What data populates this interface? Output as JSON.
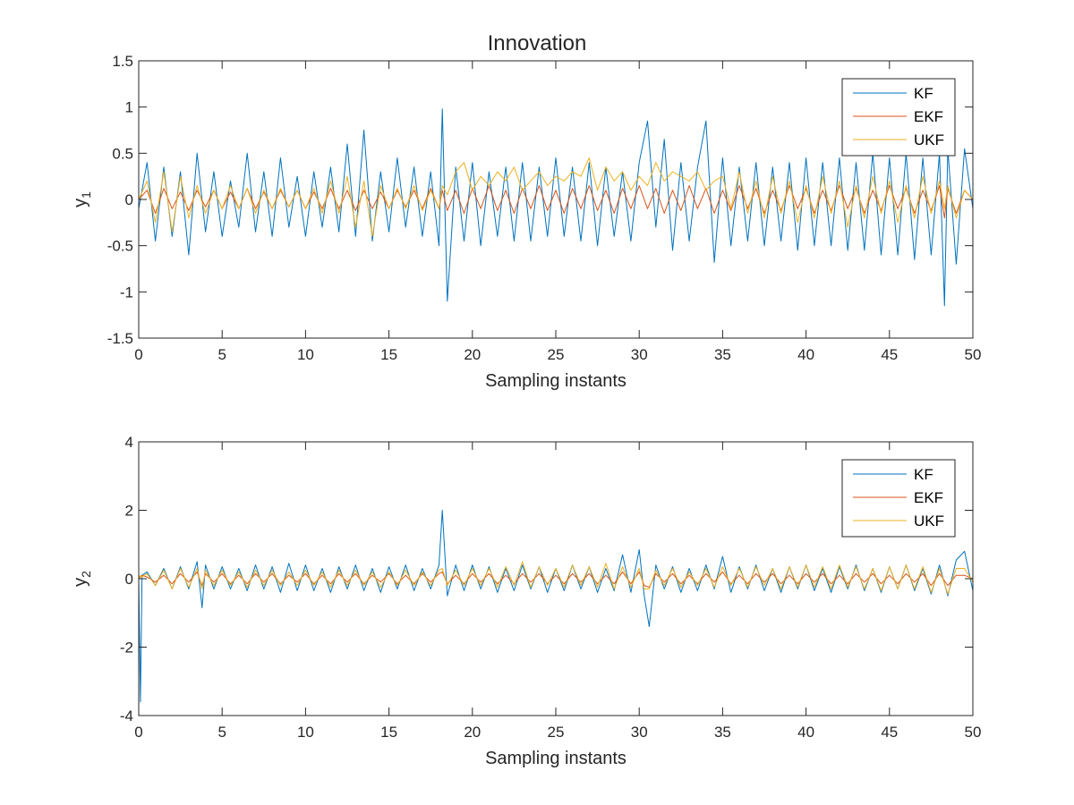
{
  "figure": {
    "title": "Innovation"
  },
  "chart_data": [
    {
      "type": "line",
      "title": "Innovation",
      "xlabel": "Sampling instants",
      "ylabel": "y",
      "ylabel_sub": "1",
      "xlim": [
        0,
        50
      ],
      "ylim": [
        -1.5,
        1.5
      ],
      "xticks": [
        "0",
        "5",
        "10",
        "15",
        "20",
        "25",
        "30",
        "35",
        "40",
        "45",
        "50"
      ],
      "yticks": [
        "-1.5",
        "-1",
        "-0.5",
        "0",
        "0.5",
        "1",
        "1.5"
      ],
      "grid": false,
      "legend_position": "top-right",
      "x": [
        0,
        0.5,
        1,
        1.5,
        2,
        2.5,
        3,
        3.5,
        4,
        4.5,
        5,
        5.5,
        6,
        6.5,
        7,
        7.5,
        8,
        8.5,
        9,
        9.5,
        10,
        10.5,
        11,
        11.5,
        12,
        12.5,
        13,
        13.5,
        14,
        14.5,
        15,
        15.5,
        16,
        16.5,
        17,
        17.5,
        18,
        18.2,
        18.5,
        19,
        19.5,
        20,
        20.5,
        21,
        21.5,
        22,
        22.5,
        23,
        23.5,
        24,
        24.5,
        25,
        25.5,
        26,
        26.5,
        27,
        27.5,
        28,
        28.5,
        29,
        29.5,
        30,
        30.5,
        31,
        31.5,
        32,
        32.5,
        33,
        33.5,
        34,
        34.5,
        35,
        35.5,
        36,
        36.5,
        37,
        37.5,
        38,
        38.5,
        39,
        39.5,
        40,
        40.5,
        41,
        41.5,
        42,
        42.5,
        43,
        43.5,
        44,
        44.5,
        45,
        45.5,
        46,
        46.5,
        47,
        47.5,
        48,
        48.3,
        48.5,
        49,
        49.5,
        50
      ],
      "series": [
        {
          "name": "KF",
          "color": "#0072BD",
          "values": [
            -0.1,
            0.4,
            -0.45,
            0.35,
            -0.4,
            0.3,
            -0.6,
            0.5,
            -0.35,
            0.3,
            -0.4,
            0.2,
            -0.3,
            0.5,
            -0.35,
            0.3,
            -0.4,
            0.45,
            -0.3,
            0.25,
            -0.4,
            0.3,
            -0.3,
            0.35,
            -0.35,
            0.6,
            -0.4,
            0.75,
            -0.45,
            0.3,
            -0.35,
            0.45,
            -0.3,
            0.35,
            -0.4,
            0.3,
            -0.5,
            0.98,
            -1.1,
            0.35,
            -0.45,
            0.4,
            -0.5,
            0.3,
            -0.4,
            0.35,
            -0.45,
            0.4,
            -0.45,
            0.35,
            -0.4,
            0.45,
            -0.4,
            0.35,
            -0.45,
            0.4,
            -0.5,
            0.35,
            -0.4,
            0.3,
            -0.45,
            0.4,
            0.85,
            -0.3,
            0.65,
            -0.55,
            0.4,
            -0.45,
            0.35,
            0.85,
            -0.68,
            0.45,
            -0.5,
            0.35,
            -0.45,
            0.4,
            -0.5,
            0.35,
            -0.45,
            0.4,
            -0.55,
            0.45,
            -0.5,
            0.4,
            -0.5,
            0.45,
            -0.55,
            0.4,
            -0.55,
            0.5,
            -0.6,
            0.45,
            -0.6,
            0.5,
            -0.65,
            0.45,
            -0.6,
            0.5,
            -1.15,
            0.55,
            -0.7,
            0.55,
            -0.1
          ]
        },
        {
          "name": "EKF",
          "color": "#D95319",
          "values": [
            0,
            0.1,
            -0.15,
            0.12,
            -0.1,
            0.08,
            -0.12,
            0.1,
            -0.08,
            0.1,
            -0.1,
            0.08,
            -0.1,
            0.12,
            -0.1,
            0.08,
            -0.1,
            0.1,
            -0.08,
            0.1,
            -0.1,
            0.08,
            -0.1,
            0.12,
            -0.1,
            0.1,
            -0.12,
            0.1,
            -0.1,
            0.08,
            -0.1,
            0.1,
            -0.08,
            0.1,
            -0.1,
            0.12,
            -0.1,
            0.1,
            -0.12,
            0.1,
            -0.15,
            0.12,
            -0.1,
            0.15,
            -0.12,
            0.1,
            -0.15,
            0.12,
            -0.1,
            0.15,
            -0.12,
            0.1,
            -0.15,
            0.12,
            -0.1,
            0.15,
            -0.12,
            0.1,
            -0.15,
            0.12,
            -0.1,
            0.15,
            -0.1,
            0.12,
            -0.15,
            0.1,
            -0.12,
            0.15,
            -0.1,
            0.12,
            -0.15,
            0.1,
            -0.12,
            0.15,
            -0.1,
            0.12,
            -0.15,
            0.1,
            -0.12,
            0.15,
            -0.1,
            0.12,
            -0.15,
            0.1,
            -0.12,
            0.15,
            -0.1,
            0.12,
            -0.15,
            0.1,
            -0.12,
            0.15,
            -0.1,
            0.12,
            -0.15,
            0.1,
            -0.12,
            0.15,
            -0.2,
            0.12,
            -0.15,
            0.1,
            0
          ]
        },
        {
          "name": "UKF",
          "color": "#EDB120",
          "values": [
            0,
            0.2,
            -0.25,
            0.3,
            -0.35,
            0.25,
            -0.2,
            0.15,
            -0.15,
            0.1,
            -0.1,
            0.15,
            -0.1,
            0.12,
            -0.15,
            0.1,
            -0.1,
            0.12,
            -0.08,
            0.1,
            -0.1,
            0.12,
            -0.15,
            0.2,
            -0.15,
            0.25,
            -0.3,
            0.2,
            -0.4,
            0.15,
            -0.1,
            0.12,
            -0.1,
            0.15,
            -0.12,
            0.1,
            -0.1,
            0.15,
            0.05,
            0.3,
            0.4,
            0.1,
            0.25,
            0.15,
            0.3,
            0.2,
            0.35,
            0.1,
            0.2,
            0.3,
            0.15,
            0.25,
            0.2,
            0.3,
            0.25,
            0.45,
            0.1,
            0.35,
            0.2,
            0.3,
            0.1,
            0.25,
            0.15,
            0.4,
            0.2,
            0.3,
            0.25,
            0.2,
            0.3,
            0.1,
            0.2,
            0.25,
            -0.1,
            0.3,
            -0.15,
            0.2,
            -0.2,
            0.25,
            -0.15,
            0.2,
            -0.25,
            0.15,
            -0.2,
            0.25,
            -0.15,
            0.2,
            -0.3,
            0.15,
            -0.2,
            0.25,
            -0.15,
            0.2,
            -0.25,
            0.15,
            -0.2,
            0.25,
            -0.15,
            0.2,
            -0.1,
            0.15,
            -0.2,
            0.1,
            0
          ]
        }
      ]
    },
    {
      "type": "line",
      "title": "",
      "xlabel": "Sampling instants",
      "ylabel": "y",
      "ylabel_sub": "2",
      "xlim": [
        0,
        50
      ],
      "ylim": [
        -4,
        4
      ],
      "xticks": [
        "0",
        "5",
        "10",
        "15",
        "20",
        "25",
        "30",
        "35",
        "40",
        "45",
        "50"
      ],
      "yticks": [
        "-4",
        "-2",
        "0",
        "2",
        "4"
      ],
      "grid": false,
      "legend_position": "top-right",
      "x": [
        0,
        0.1,
        0.2,
        0.5,
        1,
        1.5,
        2,
        2.5,
        3,
        3.5,
        3.8,
        4,
        4.5,
        5,
        5.5,
        6,
        6.5,
        7,
        7.5,
        8,
        8.5,
        9,
        9.5,
        10,
        10.5,
        11,
        11.5,
        12,
        12.5,
        13,
        13.5,
        14,
        14.5,
        15,
        15.5,
        16,
        16.5,
        17,
        17.5,
        18,
        18.2,
        18.5,
        19,
        19.5,
        20,
        20.5,
        21,
        21.5,
        22,
        22.5,
        23,
        23.5,
        24,
        24.5,
        25,
        25.5,
        26,
        26.5,
        27,
        27.5,
        28,
        28.5,
        29,
        29.5,
        30,
        30.3,
        30.6,
        31,
        31.5,
        32,
        32.5,
        33,
        33.5,
        34,
        34.5,
        35,
        35.5,
        36,
        36.5,
        37,
        37.5,
        38,
        38.5,
        39,
        39.5,
        40,
        40.5,
        41,
        41.5,
        42,
        42.5,
        43,
        43.5,
        44,
        44.5,
        45,
        45.5,
        46,
        46.5,
        47,
        47.5,
        48,
        48.5,
        49,
        49.5,
        50
      ],
      "series": [
        {
          "name": "KF",
          "color": "#0072BD",
          "values": [
            0,
            -3.6,
            0.1,
            0.2,
            -0.2,
            0.3,
            -0.3,
            0.35,
            -0.3,
            0.5,
            -0.85,
            0.4,
            -0.3,
            0.35,
            -0.3,
            0.3,
            -0.35,
            0.4,
            -0.3,
            0.35,
            -0.4,
            0.45,
            -0.35,
            0.4,
            -0.35,
            0.3,
            -0.4,
            0.35,
            -0.3,
            0.4,
            -0.35,
            0.3,
            -0.4,
            0.35,
            -0.3,
            0.4,
            -0.35,
            0.3,
            -0.3,
            0.4,
            2.0,
            -0.5,
            0.4,
            -0.35,
            0.4,
            -0.3,
            0.35,
            -0.4,
            0.3,
            -0.35,
            0.4,
            -0.3,
            0.35,
            -0.4,
            0.3,
            -0.35,
            0.4,
            -0.3,
            0.35,
            -0.4,
            0.3,
            -0.35,
            0.7,
            -0.4,
            0.85,
            -0.5,
            -1.4,
            0.4,
            -0.3,
            0.35,
            -0.4,
            0.3,
            -0.35,
            0.4,
            -0.3,
            0.65,
            -0.4,
            0.35,
            -0.3,
            0.4,
            -0.35,
            0.3,
            -0.4,
            0.35,
            -0.3,
            0.4,
            -0.35,
            0.3,
            -0.4,
            0.35,
            -0.3,
            0.4,
            -0.35,
            0.3,
            -0.4,
            0.35,
            -0.3,
            0.4,
            -0.35,
            0.3,
            -0.45,
            0.4,
            -0.5,
            0.55,
            0.8,
            -0.35
          ]
        },
        {
          "name": "EKF",
          "color": "#D95319",
          "values": [
            0,
            0.05,
            0.1,
            0.05,
            -0.1,
            0.1,
            -0.15,
            0.15,
            -0.1,
            0.2,
            -0.2,
            0.15,
            -0.1,
            0.15,
            -0.15,
            0.1,
            -0.15,
            0.15,
            -0.1,
            0.15,
            -0.15,
            0.1,
            -0.1,
            0.15,
            -0.15,
            0.1,
            -0.15,
            0.15,
            -0.1,
            0.15,
            -0.15,
            0.1,
            -0.1,
            0.15,
            -0.15,
            0.1,
            -0.15,
            0.15,
            -0.1,
            0.15,
            0.2,
            -0.15,
            0.1,
            -0.15,
            0.15,
            -0.1,
            0.15,
            -0.15,
            0.1,
            -0.15,
            0.15,
            -0.1,
            0.15,
            -0.15,
            0.1,
            -0.15,
            0.15,
            -0.1,
            0.15,
            -0.15,
            0.1,
            -0.15,
            0.2,
            -0.15,
            0.2,
            -0.2,
            -0.25,
            0.15,
            -0.1,
            0.15,
            -0.15,
            0.1,
            -0.15,
            0.15,
            -0.1,
            0.2,
            -0.15,
            0.1,
            -0.15,
            0.15,
            -0.1,
            0.15,
            -0.15,
            0.1,
            -0.15,
            0.15,
            -0.1,
            0.15,
            -0.15,
            0.1,
            -0.15,
            0.15,
            -0.1,
            0.15,
            -0.15,
            0.1,
            -0.15,
            0.15,
            -0.1,
            0.15,
            -0.2,
            0.15,
            -0.2,
            0.1,
            0.1,
            0
          ]
        },
        {
          "name": "UKF",
          "color": "#EDB120",
          "values": [
            0,
            0.1,
            0.05,
            0.15,
            -0.2,
            0.25,
            -0.3,
            0.3,
            -0.25,
            0.3,
            -0.3,
            0.25,
            -0.2,
            0.25,
            -0.2,
            0.2,
            -0.25,
            0.25,
            -0.2,
            0.25,
            -0.2,
            0.2,
            -0.2,
            0.25,
            -0.2,
            0.2,
            -0.25,
            0.25,
            -0.2,
            0.25,
            -0.2,
            0.2,
            -0.25,
            0.2,
            -0.2,
            0.25,
            -0.2,
            0.2,
            -0.2,
            0.25,
            0.3,
            -0.2,
            0.25,
            -0.2,
            0.3,
            -0.2,
            0.3,
            -0.25,
            0.35,
            -0.2,
            0.5,
            -0.25,
            0.35,
            -0.2,
            0.3,
            -0.25,
            0.4,
            -0.2,
            0.35,
            -0.25,
            0.45,
            -0.3,
            0.35,
            -0.25,
            0.3,
            -0.3,
            -0.3,
            0.25,
            -0.2,
            0.3,
            -0.25,
            0.2,
            -0.2,
            0.3,
            -0.25,
            0.35,
            -0.2,
            0.3,
            -0.25,
            0.35,
            -0.2,
            0.3,
            -0.3,
            0.35,
            -0.25,
            0.4,
            -0.25,
            0.35,
            -0.3,
            0.4,
            -0.25,
            0.35,
            -0.3,
            0.3,
            -0.35,
            0.35,
            -0.3,
            0.4,
            -0.3,
            0.35,
            -0.4,
            0.3,
            -0.45,
            0.3,
            0.3,
            -0.1
          ]
        }
      ]
    }
  ]
}
